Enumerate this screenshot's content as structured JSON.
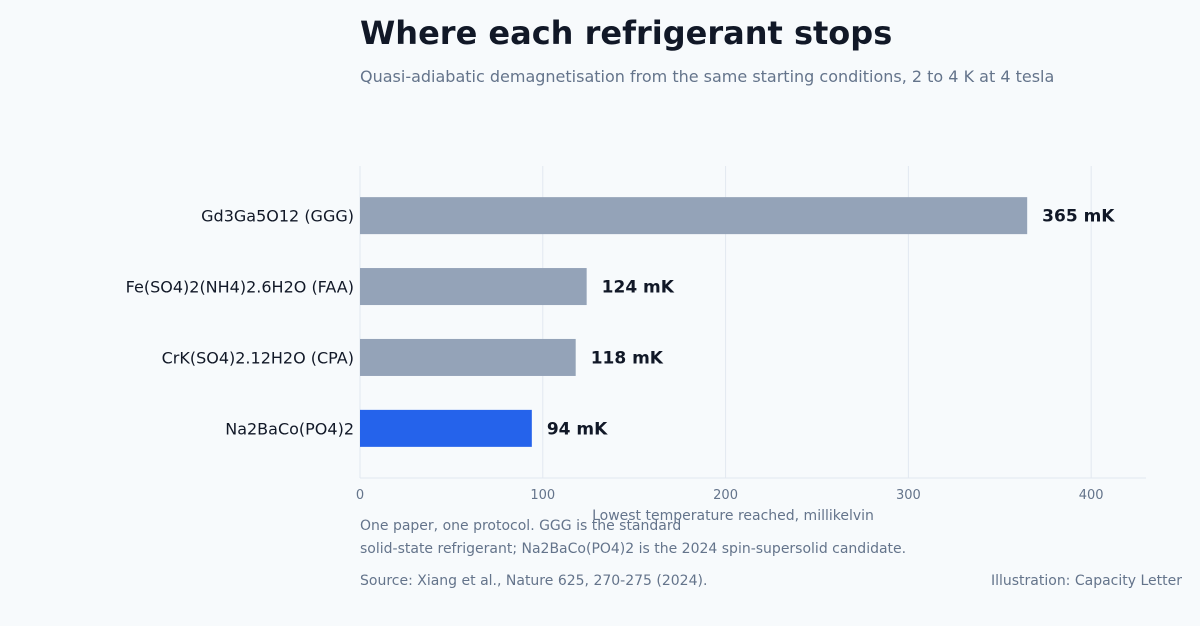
{
  "header": {
    "title": "Where each refrigerant stops",
    "subtitle": "Quasi-adiabatic demagnetisation from the same starting conditions, 2 to 4 K at 4 tesla"
  },
  "chart_data": {
    "type": "bar",
    "orientation": "horizontal",
    "categories": [
      "Gd3Ga5O12 (GGG)",
      "Fe(SO4)2(NH4)2.6H2O (FAA)",
      "CrK(SO4)2.12H2O (CPA)",
      "Na2BaCo(PO4)2"
    ],
    "values": [
      365,
      124,
      118,
      94
    ],
    "value_labels": [
      "365 mK",
      "124 mK",
      "118 mK",
      "94 mK"
    ],
    "highlight_index": 3,
    "xlabel": "Lowest temperature reached, millikelvin",
    "ylabel": "",
    "xlim": [
      0,
      430
    ],
    "xticks": [
      0,
      100,
      200,
      300,
      400
    ],
    "grid": "vertical",
    "colors": {
      "bar": "#94a3b8",
      "highlight": "#2563eb",
      "grid": "#e2e8f0",
      "label": "#111827",
      "tick": "#64748b"
    }
  },
  "footer": {
    "note_line1": "One paper, one protocol. GGG is the standard",
    "note_line2": "solid-state refrigerant; Na2BaCo(PO4)2 is the 2024 spin-supersolid candidate.",
    "source": "Source: Xiang et al., Nature 625, 270-275 (2024).",
    "credit": "Illustration: Capacity Letter"
  }
}
